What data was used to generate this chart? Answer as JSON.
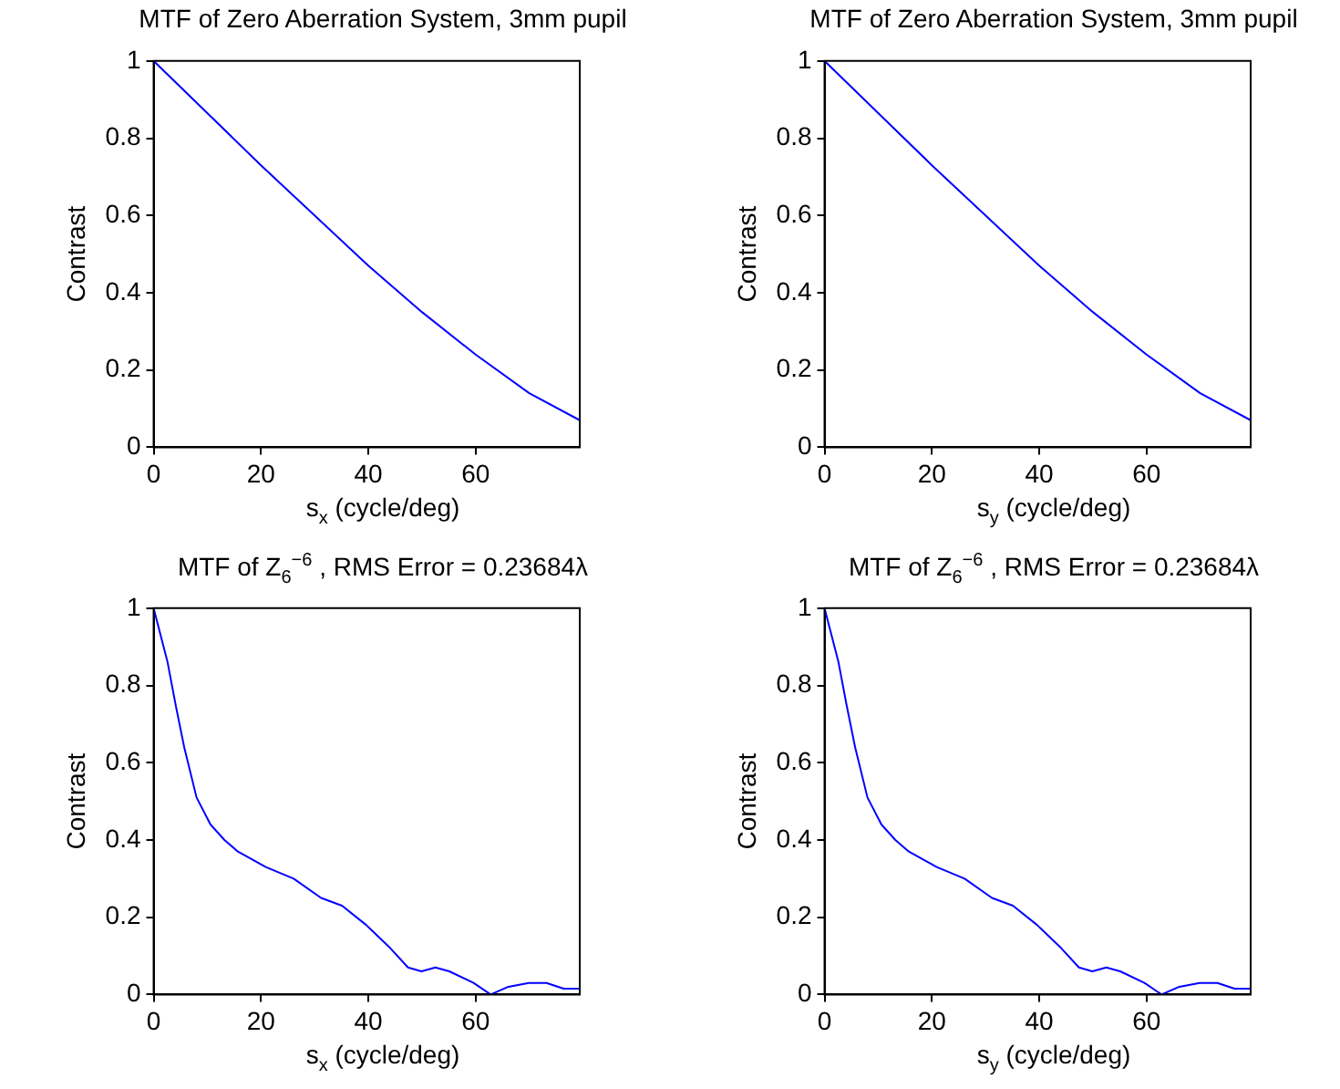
{
  "chart_data": [
    {
      "type": "line",
      "title": "MTF of Zero Aberration System, 3mm pupil",
      "xlabel": "s$_{x}$ (cycle/deg)",
      "ylabel": "Contrast",
      "xlim": [
        0,
        79.4
      ],
      "xticks": [
        0,
        20,
        40,
        60
      ],
      "ylim": [
        0,
        1
      ],
      "yticks": [
        0,
        0.2,
        0.4,
        0.6,
        0.8,
        1
      ],
      "grid": false,
      "legend": false,
      "series": [
        {
          "color": "#0000ff",
          "x": [
            0,
            10,
            20,
            30,
            40,
            50,
            60,
            70,
            79.4
          ],
          "values": [
            1,
            0.865,
            0.73,
            0.6,
            0.47,
            0.35,
            0.24,
            0.14,
            0.07
          ]
        }
      ]
    },
    {
      "type": "line",
      "title": "MTF of Zero Aberration System, 3mm pupil",
      "xlabel": "s$_{y}$ (cycle/deg)",
      "ylabel": "Contrast",
      "xlim": [
        0,
        79.4
      ],
      "xticks": [
        0,
        20,
        40,
        60
      ],
      "ylim": [
        0,
        1
      ],
      "yticks": [
        0,
        0.2,
        0.4,
        0.6,
        0.8,
        1
      ],
      "grid": false,
      "legend": false,
      "series": [
        {
          "color": "#0000ff",
          "x": [
            0,
            10,
            20,
            30,
            40,
            50,
            60,
            70,
            79.4
          ],
          "values": [
            1,
            0.865,
            0.73,
            0.6,
            0.47,
            0.35,
            0.24,
            0.14,
            0.07
          ]
        }
      ]
    },
    {
      "type": "line",
      "title": "MTF of Z$_{6}$$^{−6}$ , RMS Error = 0.23684λ",
      "xlabel": "s$_{x}$ (cycle/deg)",
      "ylabel": "Contrast",
      "xlim": [
        0,
        79.4
      ],
      "xticks": [
        0,
        20,
        40,
        60
      ],
      "ylim": [
        0,
        1
      ],
      "yticks": [
        0,
        0.2,
        0.4,
        0.6,
        0.8,
        1
      ],
      "grid": false,
      "legend": false,
      "series": [
        {
          "color": "#0000ff",
          "x": [
            0,
            2.6,
            4.1,
            5.7,
            8,
            10.6,
            13.2,
            15.7,
            18.3,
            20.9,
            26.1,
            31.2,
            35.1,
            39.6,
            44.1,
            47.4,
            49.9,
            52.5,
            55.1,
            59.6,
            62.8,
            66.1,
            69.9,
            73.2,
            76.4,
            79.4
          ],
          "values": [
            1,
            0.86,
            0.75,
            0.64,
            0.51,
            0.44,
            0.4,
            0.37,
            0.35,
            0.33,
            0.3,
            0.25,
            0.23,
            0.18,
            0.12,
            0.07,
            0.06,
            0.07,
            0.06,
            0.03,
            0.0,
            0.02,
            0.03,
            0.03,
            0.015,
            0.015
          ]
        }
      ]
    },
    {
      "type": "line",
      "title": "MTF of Z$_{6}$$^{−6}$ , RMS Error = 0.23684λ",
      "xlabel": "s$_{y}$ (cycle/deg)",
      "ylabel": "Contrast",
      "xlim": [
        0,
        79.4
      ],
      "xticks": [
        0,
        20,
        40,
        60
      ],
      "ylim": [
        0,
        1
      ],
      "yticks": [
        0,
        0.2,
        0.4,
        0.6,
        0.8,
        1
      ],
      "grid": false,
      "legend": false,
      "series": [
        {
          "color": "#0000ff",
          "x": [
            0,
            2.6,
            4.1,
            5.7,
            8,
            10.6,
            13.2,
            15.7,
            18.3,
            20.9,
            26.1,
            31.2,
            35.1,
            39.6,
            44.1,
            47.4,
            49.9,
            52.5,
            55.1,
            59.6,
            62.8,
            66.1,
            69.9,
            73.2,
            76.4,
            79.4
          ],
          "values": [
            1,
            0.86,
            0.75,
            0.64,
            0.51,
            0.44,
            0.4,
            0.37,
            0.35,
            0.33,
            0.3,
            0.25,
            0.23,
            0.18,
            0.12,
            0.07,
            0.06,
            0.07,
            0.06,
            0.03,
            0.0,
            0.02,
            0.03,
            0.03,
            0.015,
            0.015
          ]
        }
      ]
    }
  ]
}
